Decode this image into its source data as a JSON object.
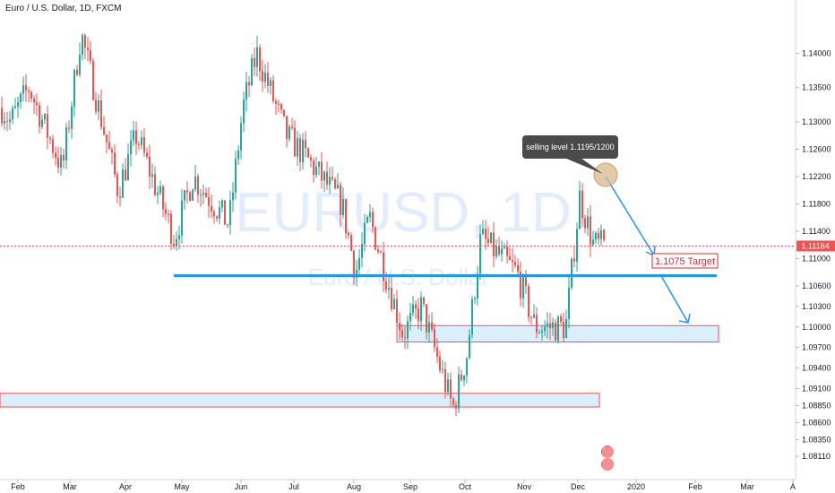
{
  "header": {
    "symbol_line": "Euro / U.S. Dollar, 1D, FXCM"
  },
  "watermark": {
    "symbol": "EURUSD, 1D",
    "description": "Euro / U.S. Dollar"
  },
  "colors": {
    "up": "#26a69a",
    "down": "#ef5350",
    "accent_line": "#2196f3",
    "zone_fill": "#dbeefb",
    "zone_border": "#ef5350",
    "price_line": "#ef5350",
    "callout": "#4a4a4a",
    "circle": "#d7b98a"
  },
  "annotations": {
    "callout_text": "selling level 1.1195/1200",
    "target_text": "1.1075 Target",
    "current_price_label": "1.11184"
  },
  "chart_data": {
    "type": "candlestick",
    "title": "Euro / U.S. Dollar, 1D, FXCM",
    "xlabel": "",
    "ylabel": "",
    "x_ticks": [
      "Feb",
      "Mar",
      "Apr",
      "May",
      "Jun",
      "Jul",
      "Aug",
      "Sep",
      "Oct",
      "Nov",
      "Dec",
      "2020",
      "Feb",
      "Mar",
      "A"
    ],
    "y_ticks": [
      "1.14000",
      "1.13500",
      "1.13000",
      "1.12600",
      "1.12200",
      "1.11800",
      "1.11400",
      "1.11000",
      "1.10600",
      "1.10300",
      "1.10000",
      "1.09700",
      "1.09400",
      "1.09100",
      "1.08850",
      "1.08600",
      "1.08350",
      "1.08110"
    ],
    "ylim": [
      1.079,
      1.1465
    ],
    "current_price": 1.11184,
    "horizontal_line": 1.1075,
    "support_zones": [
      {
        "from": "Sep",
        "to": "Feb",
        "low": 1.0978,
        "high": 1.1002
      },
      {
        "from": "Jan",
        "to": "Oct",
        "low": 1.0883,
        "high": 1.0903
      }
    ],
    "monthly_path": [
      [
        "Jan",
        1.14
      ],
      [
        "Feb",
        1.13
      ],
      [
        "Feb",
        1.135
      ],
      [
        "Mar",
        1.123
      ],
      [
        "Mar",
        1.143
      ],
      [
        "Apr",
        1.12
      ],
      [
        "Apr",
        1.128
      ],
      [
        "May",
        1.113
      ],
      [
        "May",
        1.122
      ],
      [
        "Jun",
        1.115
      ],
      [
        "Jun",
        1.132
      ],
      [
        "Jun",
        1.14
      ],
      [
        "Jul",
        1.128
      ],
      [
        "Jul",
        1.125
      ],
      [
        "Aug",
        1.118
      ],
      [
        "Aug",
        1.108
      ],
      [
        "Aug",
        1.116
      ],
      [
        "Sep",
        1.099
      ],
      [
        "Sep",
        1.103
      ],
      [
        "Oct",
        1.088
      ],
      [
        "Oct",
        1.096
      ],
      [
        "Oct",
        1.113
      ],
      [
        "Nov",
        1.108
      ],
      [
        "Nov",
        1.1
      ],
      [
        "Dec",
        1.1
      ],
      [
        "Dec",
        1.119
      ],
      [
        "Dec",
        1.112
      ]
    ]
  }
}
